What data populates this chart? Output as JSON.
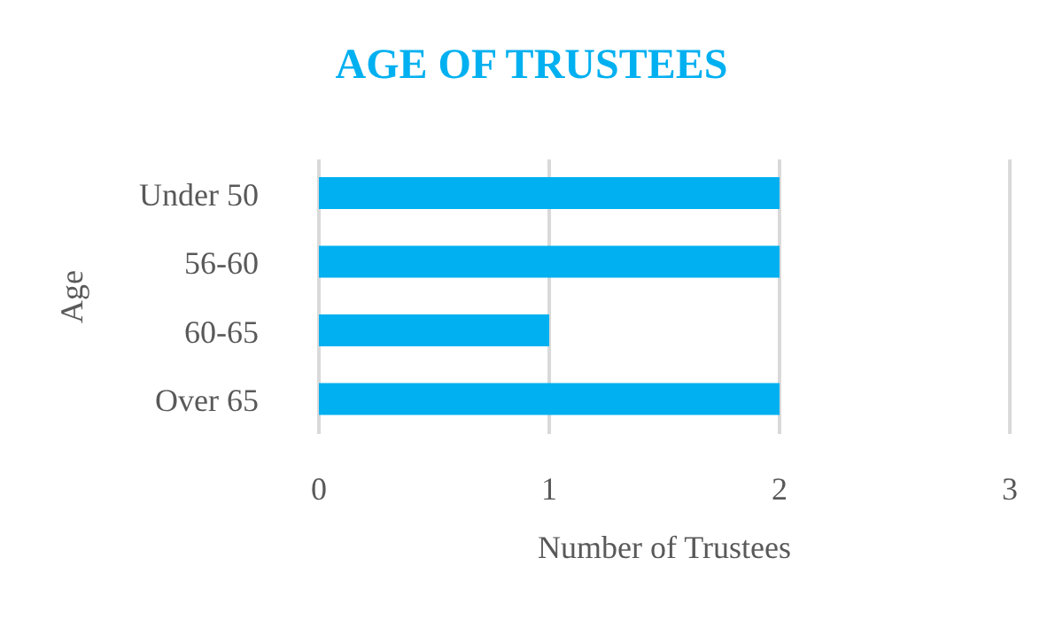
{
  "chart_data": {
    "type": "bar",
    "orientation": "horizontal",
    "title": "AGE OF TRUSTEES",
    "xlabel": "Number of Trustees",
    "ylabel": "Age",
    "categories": [
      "Under 50",
      "56-60",
      "60-65",
      "Over 65"
    ],
    "values": [
      2,
      2,
      1,
      2
    ],
    "color": "#00b0f0",
    "xlim": [
      0,
      3
    ],
    "xticks": [
      0,
      1,
      2,
      3
    ],
    "grid": "x"
  }
}
